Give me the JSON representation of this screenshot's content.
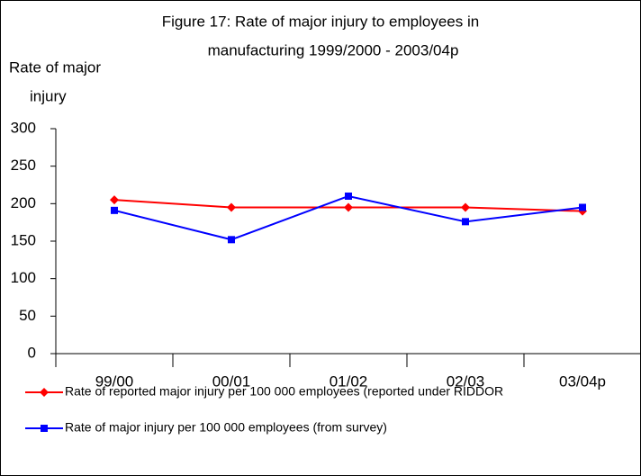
{
  "chart_data": {
    "type": "line",
    "title": [
      "Figure 17: Rate of major injury to employees in",
      "manufacturing 1999/2000 - 2003/04p"
    ],
    "y_label": [
      "Rate of major",
      "injury"
    ],
    "categories": [
      "99/00",
      "00/01",
      "01/02",
      "02/03",
      "03/04p"
    ],
    "series": [
      {
        "name": "Rate of reported major injury per 100 000 employees (reported under RIDDOR",
        "color": "#ff0000",
        "marker": "diamond",
        "values": [
          205,
          195,
          195,
          195,
          190
        ]
      },
      {
        "name": "Rate of major injury per 100 000 employees (from survey)",
        "color": "#0000ff",
        "marker": "square",
        "values": [
          191,
          152,
          210,
          176,
          195
        ]
      }
    ],
    "ylim": [
      0,
      300
    ],
    "yticks": [
      0,
      50,
      100,
      150,
      200,
      250,
      300
    ],
    "grid": false
  }
}
